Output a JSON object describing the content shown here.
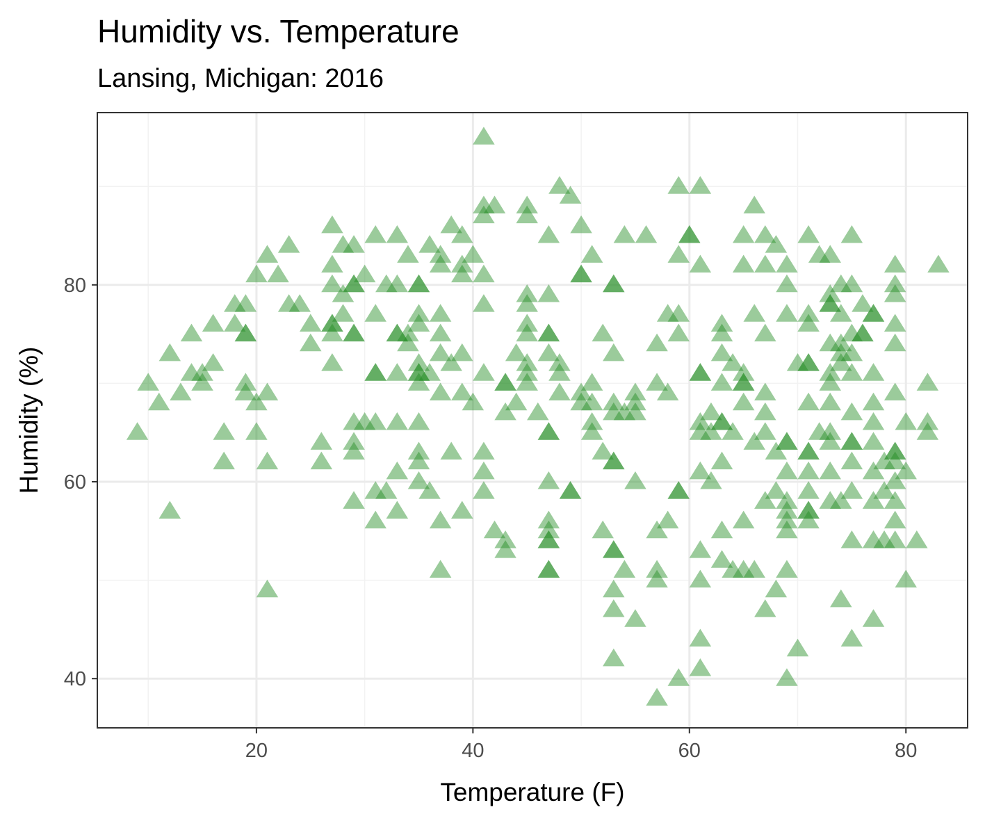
{
  "chart_data": {
    "type": "scatter",
    "title": "Humidity vs. Temperature",
    "subtitle": "Lansing, Michigan: 2016",
    "xlabel": "Temperature (F)",
    "ylabel": "Humidity (%)",
    "xlim": [
      5.3,
      85.7
    ],
    "ylim": [
      35,
      97.5
    ],
    "x_ticks": [
      20,
      40,
      60,
      80
    ],
    "y_ticks": [
      40,
      60,
      80
    ],
    "x_tick_labels": [
      "20",
      "40",
      "60",
      "80"
    ],
    "y_tick_labels": [
      "40",
      "60",
      "80"
    ],
    "grid": true,
    "legend": "none",
    "marker": "triangle",
    "point_color": "#228B22",
    "point_opacity": 0.45,
    "points": [
      [
        9,
        65
      ],
      [
        10,
        70
      ],
      [
        11,
        68
      ],
      [
        12,
        73
      ],
      [
        12,
        57
      ],
      [
        13,
        69
      ],
      [
        14,
        75
      ],
      [
        14,
        71
      ],
      [
        15,
        70
      ],
      [
        15,
        71
      ],
      [
        16,
        72
      ],
      [
        16,
        76
      ],
      [
        17,
        65
      ],
      [
        17,
        62
      ],
      [
        18,
        76
      ],
      [
        18,
        78
      ],
      [
        19,
        75
      ],
      [
        19,
        75
      ],
      [
        19,
        78
      ],
      [
        19,
        70
      ],
      [
        19,
        69
      ],
      [
        20,
        81
      ],
      [
        20,
        68
      ],
      [
        20,
        65
      ],
      [
        21,
        83
      ],
      [
        21,
        69
      ],
      [
        21,
        62
      ],
      [
        21,
        49
      ],
      [
        22,
        81
      ],
      [
        23,
        84
      ],
      [
        23,
        78
      ],
      [
        24,
        78
      ],
      [
        25,
        76
      ],
      [
        25,
        74
      ],
      [
        26,
        64
      ],
      [
        26,
        62
      ],
      [
        27,
        86
      ],
      [
        27,
        82
      ],
      [
        27,
        80
      ],
      [
        27,
        76
      ],
      [
        27,
        76
      ],
      [
        27,
        75
      ],
      [
        27,
        72
      ],
      [
        28,
        84
      ],
      [
        28,
        79
      ],
      [
        28,
        77
      ],
      [
        29,
        84
      ],
      [
        29,
        80
      ],
      [
        29,
        80
      ],
      [
        29,
        75
      ],
      [
        29,
        75
      ],
      [
        29,
        66
      ],
      [
        29,
        64
      ],
      [
        29,
        63
      ],
      [
        29,
        58
      ],
      [
        30,
        81
      ],
      [
        30,
        66
      ],
      [
        31,
        85
      ],
      [
        31,
        77
      ],
      [
        31,
        71
      ],
      [
        31,
        71
      ],
      [
        31,
        66
      ],
      [
        31,
        59
      ],
      [
        31,
        56
      ],
      [
        32,
        80
      ],
      [
        32,
        59
      ],
      [
        33,
        85
      ],
      [
        33,
        80
      ],
      [
        33,
        75
      ],
      [
        33,
        75
      ],
      [
        33,
        71
      ],
      [
        33,
        66
      ],
      [
        33,
        61
      ],
      [
        33,
        57
      ],
      [
        34,
        83
      ],
      [
        34,
        75
      ],
      [
        34,
        74
      ],
      [
        35,
        80
      ],
      [
        35,
        80
      ],
      [
        35,
        77
      ],
      [
        35,
        76
      ],
      [
        35,
        72
      ],
      [
        35,
        71
      ],
      [
        35,
        71
      ],
      [
        35,
        70
      ],
      [
        35,
        66
      ],
      [
        35,
        63
      ],
      [
        35,
        62
      ],
      [
        35,
        60
      ],
      [
        36,
        84
      ],
      [
        36,
        71
      ],
      [
        36,
        59
      ],
      [
        37,
        83
      ],
      [
        37,
        82
      ],
      [
        37,
        77
      ],
      [
        37,
        75
      ],
      [
        37,
        73
      ],
      [
        37,
        69
      ],
      [
        37,
        56
      ],
      [
        37,
        51
      ],
      [
        38,
        86
      ],
      [
        38,
        72
      ],
      [
        38,
        63
      ],
      [
        39,
        85
      ],
      [
        39,
        82
      ],
      [
        39,
        81
      ],
      [
        39,
        73
      ],
      [
        39,
        69
      ],
      [
        39,
        57
      ],
      [
        40,
        83
      ],
      [
        40,
        68
      ],
      [
        41,
        95
      ],
      [
        41,
        88
      ],
      [
        41,
        87
      ],
      [
        41,
        81
      ],
      [
        41,
        78
      ],
      [
        41,
        71
      ],
      [
        41,
        63
      ],
      [
        41,
        61
      ],
      [
        41,
        59
      ],
      [
        42,
        88
      ],
      [
        42,
        55
      ],
      [
        43,
        70
      ],
      [
        43,
        70
      ],
      [
        43,
        67
      ],
      [
        43,
        54
      ],
      [
        43,
        53
      ],
      [
        44,
        73
      ],
      [
        44,
        68
      ],
      [
        45,
        88
      ],
      [
        45,
        87
      ],
      [
        45,
        79
      ],
      [
        45,
        78
      ],
      [
        45,
        76
      ],
      [
        45,
        75
      ],
      [
        45,
        72
      ],
      [
        45,
        71
      ],
      [
        45,
        70
      ],
      [
        46,
        67
      ],
      [
        47,
        85
      ],
      [
        47,
        79
      ],
      [
        47,
        75
      ],
      [
        47,
        75
      ],
      [
        47,
        73
      ],
      [
        47,
        65
      ],
      [
        47,
        65
      ],
      [
        47,
        60
      ],
      [
        47,
        56
      ],
      [
        47,
        55
      ],
      [
        47,
        54
      ],
      [
        47,
        54
      ],
      [
        47,
        51
      ],
      [
        47,
        51
      ],
      [
        48,
        90
      ],
      [
        48,
        72
      ],
      [
        48,
        71
      ],
      [
        48,
        69
      ],
      [
        49,
        89
      ],
      [
        49,
        59
      ],
      [
        49,
        59
      ],
      [
        50,
        86
      ],
      [
        50,
        81
      ],
      [
        50,
        81
      ],
      [
        50,
        69
      ],
      [
        50,
        68
      ],
      [
        51,
        83
      ],
      [
        51,
        70
      ],
      [
        51,
        68
      ],
      [
        51,
        66
      ],
      [
        51,
        65
      ],
      [
        52,
        63
      ],
      [
        52,
        55
      ],
      [
        52,
        75
      ],
      [
        53,
        80
      ],
      [
        53,
        80
      ],
      [
        53,
        73
      ],
      [
        53,
        68
      ],
      [
        53,
        67
      ],
      [
        53,
        62
      ],
      [
        53,
        62
      ],
      [
        53,
        53
      ],
      [
        53,
        53
      ],
      [
        53,
        49
      ],
      [
        53,
        47
      ],
      [
        53,
        42
      ],
      [
        54,
        85
      ],
      [
        54,
        67
      ],
      [
        54,
        51
      ],
      [
        55,
        69
      ],
      [
        55,
        68
      ],
      [
        55,
        67
      ],
      [
        55,
        60
      ],
      [
        55,
        46
      ],
      [
        56,
        85
      ],
      [
        57,
        74
      ],
      [
        57,
        70
      ],
      [
        57,
        55
      ],
      [
        57,
        51
      ],
      [
        57,
        50
      ],
      [
        57,
        38
      ],
      [
        58,
        77
      ],
      [
        58,
        69
      ],
      [
        58,
        56
      ],
      [
        59,
        90
      ],
      [
        59,
        83
      ],
      [
        59,
        77
      ],
      [
        59,
        75
      ],
      [
        59,
        59
      ],
      [
        59,
        59
      ],
      [
        59,
        40
      ],
      [
        60,
        85
      ],
      [
        60,
        85
      ],
      [
        61,
        90
      ],
      [
        61,
        82
      ],
      [
        61,
        71
      ],
      [
        61,
        71
      ],
      [
        61,
        66
      ],
      [
        61,
        65
      ],
      [
        61,
        61
      ],
      [
        61,
        53
      ],
      [
        61,
        50
      ],
      [
        61,
        44
      ],
      [
        61,
        41
      ],
      [
        62,
        67
      ],
      [
        62,
        65
      ],
      [
        62,
        60
      ],
      [
        63,
        76
      ],
      [
        63,
        75
      ],
      [
        63,
        73
      ],
      [
        63,
        70
      ],
      [
        63,
        66
      ],
      [
        63,
        66
      ],
      [
        63,
        62
      ],
      [
        63,
        55
      ],
      [
        63,
        52
      ],
      [
        64,
        72
      ],
      [
        64,
        65
      ],
      [
        64,
        51
      ],
      [
        65,
        85
      ],
      [
        65,
        82
      ],
      [
        65,
        71
      ],
      [
        65,
        70
      ],
      [
        65,
        70
      ],
      [
        65,
        68
      ],
      [
        65,
        56
      ],
      [
        65,
        51
      ],
      [
        66,
        88
      ],
      [
        66,
        77
      ],
      [
        66,
        64
      ],
      [
        66,
        51
      ],
      [
        67,
        85
      ],
      [
        67,
        82
      ],
      [
        67,
        75
      ],
      [
        67,
        69
      ],
      [
        67,
        67
      ],
      [
        67,
        65
      ],
      [
        67,
        58
      ],
      [
        67,
        47
      ],
      [
        68,
        84
      ],
      [
        68,
        63
      ],
      [
        68,
        59
      ],
      [
        68,
        49
      ],
      [
        69,
        82
      ],
      [
        69,
        80
      ],
      [
        69,
        77
      ],
      [
        69,
        64
      ],
      [
        69,
        64
      ],
      [
        69,
        61
      ],
      [
        69,
        58
      ],
      [
        69,
        57
      ],
      [
        69,
        56
      ],
      [
        69,
        55
      ],
      [
        69,
        51
      ],
      [
        69,
        40
      ],
      [
        70,
        72
      ],
      [
        70,
        43
      ],
      [
        71,
        85
      ],
      [
        71,
        77
      ],
      [
        71,
        76
      ],
      [
        71,
        72
      ],
      [
        71,
        72
      ],
      [
        71,
        68
      ],
      [
        71,
        63
      ],
      [
        71,
        63
      ],
      [
        71,
        61
      ],
      [
        71,
        59
      ],
      [
        71,
        57
      ],
      [
        71,
        57
      ],
      [
        71,
        56
      ],
      [
        72,
        83
      ],
      [
        72,
        65
      ],
      [
        73,
        83
      ],
      [
        73,
        79
      ],
      [
        73,
        78
      ],
      [
        73,
        78
      ],
      [
        73,
        74
      ],
      [
        73,
        71
      ],
      [
        73,
        70
      ],
      [
        73,
        68
      ],
      [
        73,
        65
      ],
      [
        73,
        64
      ],
      [
        73,
        61
      ],
      [
        73,
        58
      ],
      [
        74,
        80
      ],
      [
        74,
        77
      ],
      [
        74,
        74
      ],
      [
        74,
        73
      ],
      [
        74,
        72
      ],
      [
        74,
        58
      ],
      [
        74,
        48
      ],
      [
        75,
        85
      ],
      [
        75,
        80
      ],
      [
        75,
        75
      ],
      [
        75,
        73
      ],
      [
        75,
        71
      ],
      [
        75,
        67
      ],
      [
        75,
        64
      ],
      [
        75,
        64
      ],
      [
        75,
        62
      ],
      [
        75,
        59
      ],
      [
        75,
        54
      ],
      [
        75,
        44
      ],
      [
        76,
        78
      ],
      [
        76,
        75
      ],
      [
        76,
        75
      ],
      [
        77,
        77
      ],
      [
        77,
        77
      ],
      [
        77,
        71
      ],
      [
        77,
        68
      ],
      [
        77,
        66
      ],
      [
        77,
        64
      ],
      [
        77,
        61
      ],
      [
        77,
        58
      ],
      [
        77,
        54
      ],
      [
        77,
        46
      ],
      [
        78,
        62
      ],
      [
        78,
        59
      ],
      [
        78,
        54
      ],
      [
        79,
        82
      ],
      [
        79,
        80
      ],
      [
        79,
        79
      ],
      [
        79,
        76
      ],
      [
        79,
        74
      ],
      [
        79,
        69
      ],
      [
        79,
        63
      ],
      [
        79,
        63
      ],
      [
        79,
        62
      ],
      [
        79,
        60
      ],
      [
        79,
        58
      ],
      [
        79,
        56
      ],
      [
        79,
        54
      ],
      [
        80,
        66
      ],
      [
        80,
        61
      ],
      [
        80,
        50
      ],
      [
        81,
        54
      ],
      [
        82,
        70
      ],
      [
        82,
        66
      ],
      [
        82,
        65
      ],
      [
        83,
        82
      ]
    ]
  }
}
